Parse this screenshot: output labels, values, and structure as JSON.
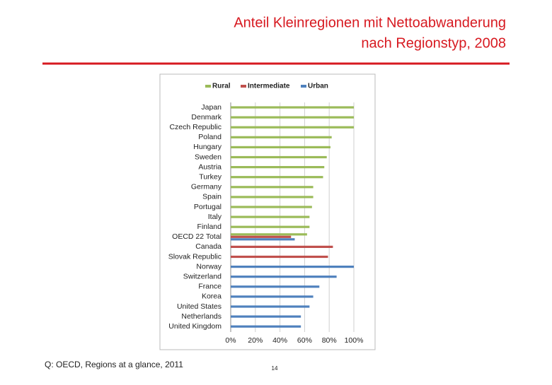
{
  "slide": {
    "title": [
      "Anteil Kleinregionen mit Nettoabwanderung",
      "nach Regionstyp, 2008"
    ],
    "source": "Q: OECD, Regions at a glance, 2011",
    "page_number": "14"
  },
  "chart_data": {
    "type": "bar",
    "orientation": "horizontal",
    "grid": true,
    "legend": "top",
    "categories": [
      "Japan",
      "Denmark",
      "Czech Republic",
      "Poland",
      "Hungary",
      "Sweden",
      "Austria",
      "Turkey",
      "Germany",
      "Spain",
      "Portugal",
      "Italy",
      "Finland",
      "OECD 22 Total",
      "Canada",
      "Slovak Republic",
      "Norway",
      "Switzerland",
      "France",
      "Korea",
      "United States",
      "Netherlands",
      "United Kingdom"
    ],
    "series": [
      {
        "name": "Rural",
        "color": "#9bbb59",
        "values": [
          100,
          100,
          100,
          82,
          81,
          78,
          76,
          75,
          67,
          67,
          66,
          64,
          64,
          62,
          null,
          null,
          null,
          null,
          null,
          null,
          null,
          null,
          null
        ]
      },
      {
        "name": "Intermediate",
        "color": "#c0504d",
        "values": [
          null,
          null,
          null,
          null,
          null,
          null,
          null,
          null,
          null,
          null,
          null,
          null,
          null,
          49,
          83,
          79,
          null,
          null,
          null,
          null,
          null,
          null,
          null
        ]
      },
      {
        "name": "Urban",
        "color": "#4f81bd",
        "values": [
          null,
          null,
          null,
          null,
          null,
          null,
          null,
          null,
          null,
          null,
          null,
          null,
          null,
          52,
          null,
          null,
          100,
          86,
          72,
          67,
          64,
          57,
          57
        ]
      }
    ],
    "xlim": [
      0,
      100
    ],
    "xticks": [
      {
        "value": 0,
        "label": "0%"
      },
      {
        "value": 20,
        "label": "20%"
      },
      {
        "value": 40,
        "label": "40%"
      },
      {
        "value": 60,
        "label": "60%"
      },
      {
        "value": 80,
        "label": "80%"
      },
      {
        "value": 100,
        "label": "100%"
      }
    ]
  }
}
